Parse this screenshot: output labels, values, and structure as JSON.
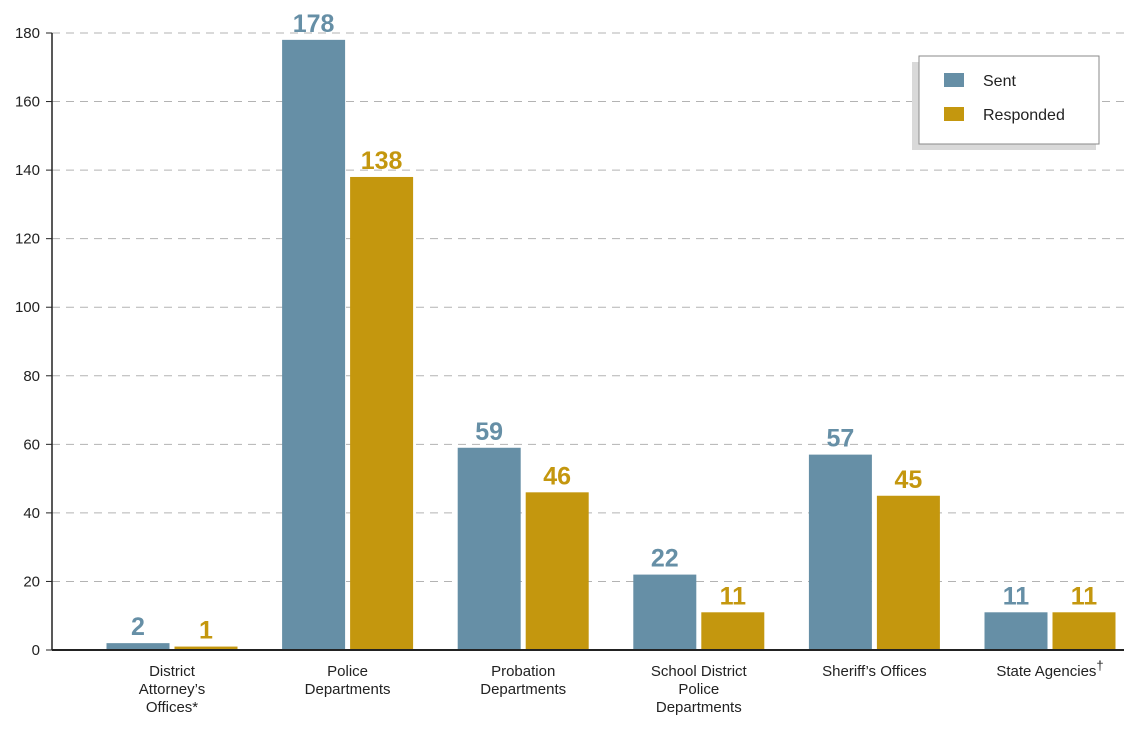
{
  "chart_data": {
    "type": "bar",
    "title": "",
    "xlabel": "",
    "ylabel": "",
    "ylim": [
      0,
      180
    ],
    "yticks": [
      0,
      20,
      40,
      60,
      80,
      100,
      120,
      140,
      160,
      180
    ],
    "grid": true,
    "legend_position": "top-right",
    "categories": [
      "District Attorney’s Offices*",
      "Police Departments",
      "Probation Departments",
      "School District Police Departments",
      "Sheriff’s Offices",
      "State Agencies†"
    ],
    "category_lines": [
      [
        "District",
        "Attorney’s",
        "Offices*"
      ],
      [
        "Police",
        "Departments"
      ],
      [
        "Probation",
        "Departments"
      ],
      [
        "School District",
        "Police",
        "Departments"
      ],
      [
        "Sheriff’s Offices"
      ],
      [
        "State Agencies†"
      ]
    ],
    "series": [
      {
        "name": "Sent",
        "color": "#668fa6",
        "values": [
          2,
          178,
          59,
          22,
          57,
          11
        ]
      },
      {
        "name": "Responded",
        "color": "#c4970e",
        "values": [
          1,
          138,
          46,
          11,
          45,
          11
        ]
      }
    ]
  }
}
